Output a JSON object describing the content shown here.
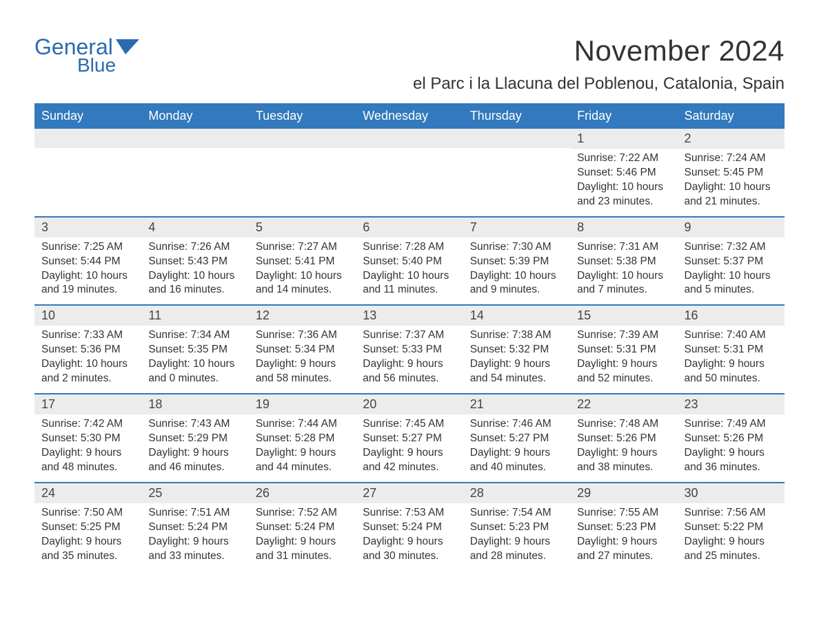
{
  "logo": {
    "general": "General",
    "blue": "Blue"
  },
  "title": "November 2024",
  "location": "el Parc i la Llacuna del Poblenou, Catalonia, Spain",
  "colors": {
    "header_bg": "#3279bd",
    "header_text": "#ffffff",
    "daynum_bg": "#ececec",
    "week_border": "#3279bd",
    "logo_color": "#2a6bb0",
    "body_text": "#333333"
  },
  "day_names": [
    "Sunday",
    "Monday",
    "Tuesday",
    "Wednesday",
    "Thursday",
    "Friday",
    "Saturday"
  ],
  "weeks": [
    [
      {
        "blank": true
      },
      {
        "blank": true
      },
      {
        "blank": true
      },
      {
        "blank": true
      },
      {
        "blank": true
      },
      {
        "day": "1",
        "sunrise": "Sunrise: 7:22 AM",
        "sunset": "Sunset: 5:46 PM",
        "daylight1": "Daylight: 10 hours",
        "daylight2": "and 23 minutes."
      },
      {
        "day": "2",
        "sunrise": "Sunrise: 7:24 AM",
        "sunset": "Sunset: 5:45 PM",
        "daylight1": "Daylight: 10 hours",
        "daylight2": "and 21 minutes."
      }
    ],
    [
      {
        "day": "3",
        "sunrise": "Sunrise: 7:25 AM",
        "sunset": "Sunset: 5:44 PM",
        "daylight1": "Daylight: 10 hours",
        "daylight2": "and 19 minutes."
      },
      {
        "day": "4",
        "sunrise": "Sunrise: 7:26 AM",
        "sunset": "Sunset: 5:43 PM",
        "daylight1": "Daylight: 10 hours",
        "daylight2": "and 16 minutes."
      },
      {
        "day": "5",
        "sunrise": "Sunrise: 7:27 AM",
        "sunset": "Sunset: 5:41 PM",
        "daylight1": "Daylight: 10 hours",
        "daylight2": "and 14 minutes."
      },
      {
        "day": "6",
        "sunrise": "Sunrise: 7:28 AM",
        "sunset": "Sunset: 5:40 PM",
        "daylight1": "Daylight: 10 hours",
        "daylight2": "and 11 minutes."
      },
      {
        "day": "7",
        "sunrise": "Sunrise: 7:30 AM",
        "sunset": "Sunset: 5:39 PM",
        "daylight1": "Daylight: 10 hours",
        "daylight2": "and 9 minutes."
      },
      {
        "day": "8",
        "sunrise": "Sunrise: 7:31 AM",
        "sunset": "Sunset: 5:38 PM",
        "daylight1": "Daylight: 10 hours",
        "daylight2": "and 7 minutes."
      },
      {
        "day": "9",
        "sunrise": "Sunrise: 7:32 AM",
        "sunset": "Sunset: 5:37 PM",
        "daylight1": "Daylight: 10 hours",
        "daylight2": "and 5 minutes."
      }
    ],
    [
      {
        "day": "10",
        "sunrise": "Sunrise: 7:33 AM",
        "sunset": "Sunset: 5:36 PM",
        "daylight1": "Daylight: 10 hours",
        "daylight2": "and 2 minutes."
      },
      {
        "day": "11",
        "sunrise": "Sunrise: 7:34 AM",
        "sunset": "Sunset: 5:35 PM",
        "daylight1": "Daylight: 10 hours",
        "daylight2": "and 0 minutes."
      },
      {
        "day": "12",
        "sunrise": "Sunrise: 7:36 AM",
        "sunset": "Sunset: 5:34 PM",
        "daylight1": "Daylight: 9 hours",
        "daylight2": "and 58 minutes."
      },
      {
        "day": "13",
        "sunrise": "Sunrise: 7:37 AM",
        "sunset": "Sunset: 5:33 PM",
        "daylight1": "Daylight: 9 hours",
        "daylight2": "and 56 minutes."
      },
      {
        "day": "14",
        "sunrise": "Sunrise: 7:38 AM",
        "sunset": "Sunset: 5:32 PM",
        "daylight1": "Daylight: 9 hours",
        "daylight2": "and 54 minutes."
      },
      {
        "day": "15",
        "sunrise": "Sunrise: 7:39 AM",
        "sunset": "Sunset: 5:31 PM",
        "daylight1": "Daylight: 9 hours",
        "daylight2": "and 52 minutes."
      },
      {
        "day": "16",
        "sunrise": "Sunrise: 7:40 AM",
        "sunset": "Sunset: 5:31 PM",
        "daylight1": "Daylight: 9 hours",
        "daylight2": "and 50 minutes."
      }
    ],
    [
      {
        "day": "17",
        "sunrise": "Sunrise: 7:42 AM",
        "sunset": "Sunset: 5:30 PM",
        "daylight1": "Daylight: 9 hours",
        "daylight2": "and 48 minutes."
      },
      {
        "day": "18",
        "sunrise": "Sunrise: 7:43 AM",
        "sunset": "Sunset: 5:29 PM",
        "daylight1": "Daylight: 9 hours",
        "daylight2": "and 46 minutes."
      },
      {
        "day": "19",
        "sunrise": "Sunrise: 7:44 AM",
        "sunset": "Sunset: 5:28 PM",
        "daylight1": "Daylight: 9 hours",
        "daylight2": "and 44 minutes."
      },
      {
        "day": "20",
        "sunrise": "Sunrise: 7:45 AM",
        "sunset": "Sunset: 5:27 PM",
        "daylight1": "Daylight: 9 hours",
        "daylight2": "and 42 minutes."
      },
      {
        "day": "21",
        "sunrise": "Sunrise: 7:46 AM",
        "sunset": "Sunset: 5:27 PM",
        "daylight1": "Daylight: 9 hours",
        "daylight2": "and 40 minutes."
      },
      {
        "day": "22",
        "sunrise": "Sunrise: 7:48 AM",
        "sunset": "Sunset: 5:26 PM",
        "daylight1": "Daylight: 9 hours",
        "daylight2": "and 38 minutes."
      },
      {
        "day": "23",
        "sunrise": "Sunrise: 7:49 AM",
        "sunset": "Sunset: 5:26 PM",
        "daylight1": "Daylight: 9 hours",
        "daylight2": "and 36 minutes."
      }
    ],
    [
      {
        "day": "24",
        "sunrise": "Sunrise: 7:50 AM",
        "sunset": "Sunset: 5:25 PM",
        "daylight1": "Daylight: 9 hours",
        "daylight2": "and 35 minutes."
      },
      {
        "day": "25",
        "sunrise": "Sunrise: 7:51 AM",
        "sunset": "Sunset: 5:24 PM",
        "daylight1": "Daylight: 9 hours",
        "daylight2": "and 33 minutes."
      },
      {
        "day": "26",
        "sunrise": "Sunrise: 7:52 AM",
        "sunset": "Sunset: 5:24 PM",
        "daylight1": "Daylight: 9 hours",
        "daylight2": "and 31 minutes."
      },
      {
        "day": "27",
        "sunrise": "Sunrise: 7:53 AM",
        "sunset": "Sunset: 5:24 PM",
        "daylight1": "Daylight: 9 hours",
        "daylight2": "and 30 minutes."
      },
      {
        "day": "28",
        "sunrise": "Sunrise: 7:54 AM",
        "sunset": "Sunset: 5:23 PM",
        "daylight1": "Daylight: 9 hours",
        "daylight2": "and 28 minutes."
      },
      {
        "day": "29",
        "sunrise": "Sunrise: 7:55 AM",
        "sunset": "Sunset: 5:23 PM",
        "daylight1": "Daylight: 9 hours",
        "daylight2": "and 27 minutes."
      },
      {
        "day": "30",
        "sunrise": "Sunrise: 7:56 AM",
        "sunset": "Sunset: 5:22 PM",
        "daylight1": "Daylight: 9 hours",
        "daylight2": "and 25 minutes."
      }
    ]
  ]
}
